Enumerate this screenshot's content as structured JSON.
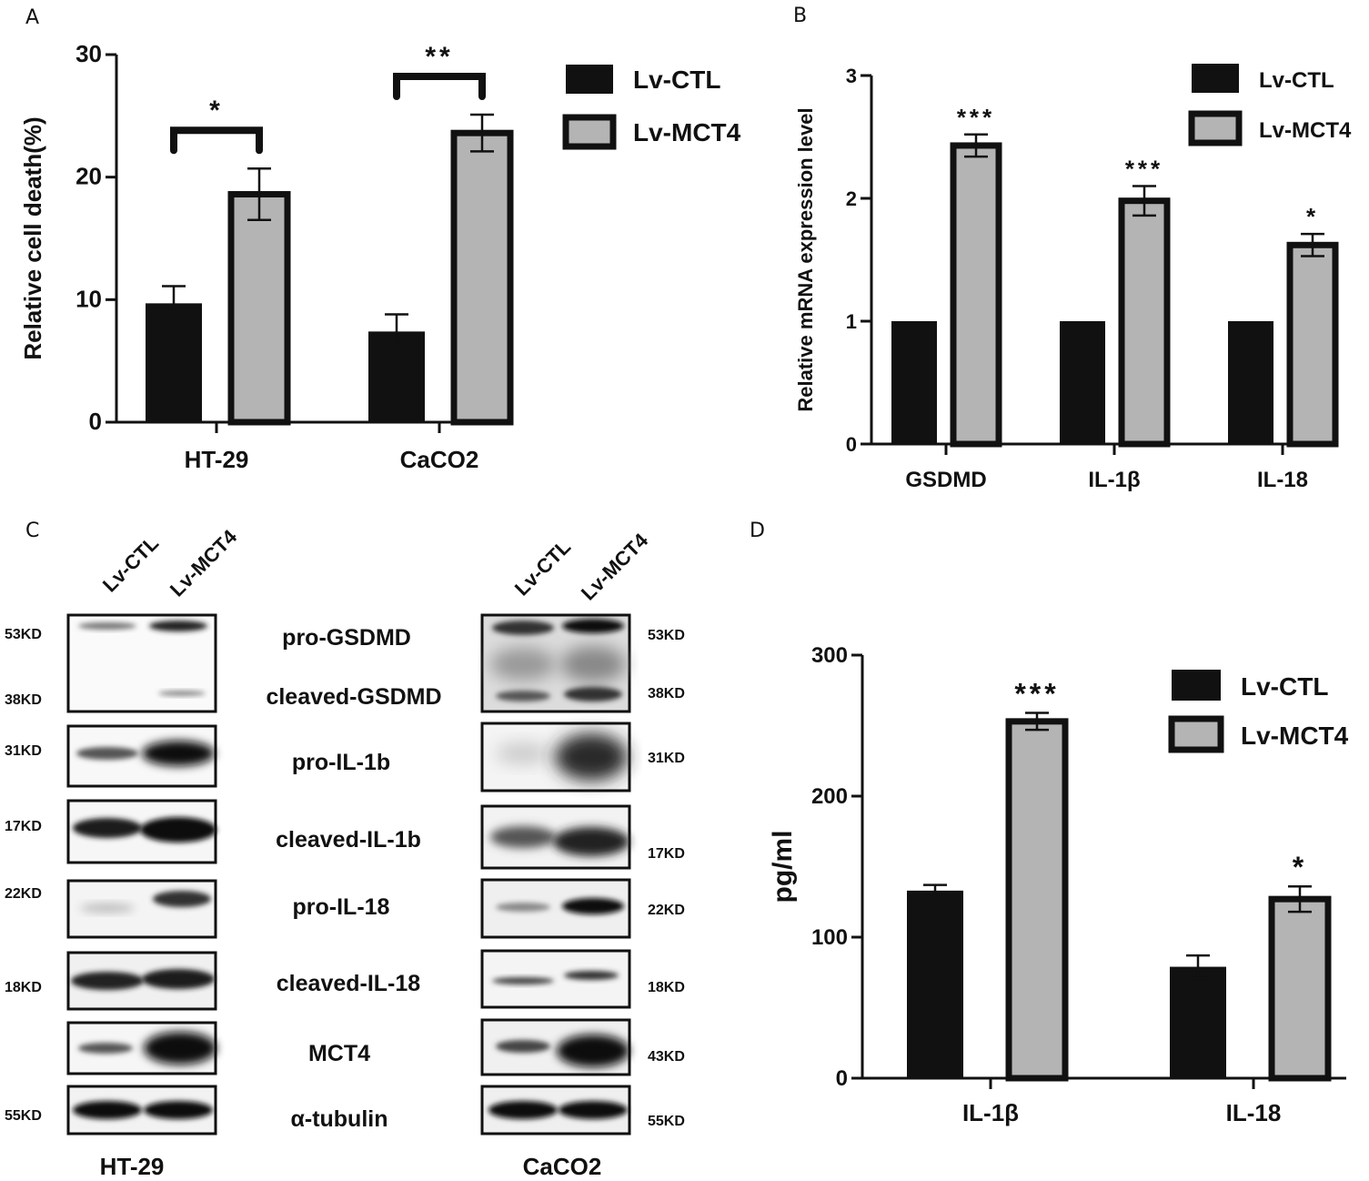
{
  "panels": [
    "A",
    "B",
    "C",
    "D"
  ],
  "colors": {
    "ctl": "#111111",
    "mct4": "#b4b4b4",
    "outline": "#111111"
  },
  "chart_data": [
    {
      "type": "bar",
      "panel": "A",
      "ylabel": "Relative cell death(%)",
      "xlabel": "",
      "ylim": [
        0,
        30
      ],
      "yticks": [
        "0",
        "10",
        "20",
        "30"
      ],
      "categories": [
        "HT-29",
        "CaCO2"
      ],
      "series": [
        {
          "name": "Lv-CTL",
          "values": [
            9.7,
            7.4
          ],
          "errors": [
            1.4,
            1.4
          ]
        },
        {
          "name": "Lv-MCT4",
          "values": [
            18.6,
            23.6
          ],
          "errors": [
            2.1,
            1.5
          ]
        }
      ],
      "significance": [
        {
          "category": "HT-29",
          "label": "*",
          "bracket": true
        },
        {
          "category": "CaCO2",
          "label": "**",
          "bracket": true
        }
      ],
      "legend": "top-right"
    },
    {
      "type": "bar",
      "panel": "B",
      "ylabel": "Relative mRNA expression level",
      "xlabel": "",
      "ylim": [
        0,
        3
      ],
      "yticks": [
        "0",
        "1",
        "2",
        "3"
      ],
      "categories": [
        "GSDMD",
        "IL-1β",
        "IL-18"
      ],
      "series": [
        {
          "name": "Lv-CTL",
          "values": [
            1.0,
            1.0,
            1.0
          ],
          "errors": [
            0,
            0,
            0
          ]
        },
        {
          "name": "Lv-MCT4",
          "values": [
            2.43,
            1.98,
            1.62
          ],
          "errors": [
            0.09,
            0.12,
            0.09
          ]
        }
      ],
      "significance": [
        {
          "category": "GSDMD",
          "label": "***"
        },
        {
          "category": "IL-1β",
          "label": "***"
        },
        {
          "category": "IL-18",
          "label": "*"
        }
      ],
      "legend": "top-right"
    },
    {
      "type": "bar",
      "panel": "D",
      "ylabel": "pg/ml",
      "xlabel": "",
      "ylim": [
        0,
        300
      ],
      "yticks": [
        "0",
        "100",
        "200",
        "300"
      ],
      "categories": [
        "IL-1β",
        "IL-18"
      ],
      "series": [
        {
          "name": "Lv-CTL",
          "values": [
            133,
            79
          ],
          "errors": [
            4,
            8
          ]
        },
        {
          "name": "Lv-MCT4",
          "values": [
            253,
            127
          ],
          "errors": [
            6,
            9
          ]
        }
      ],
      "significance": [
        {
          "category": "IL-1β",
          "label": "***"
        },
        {
          "category": "IL-18",
          "label": "*"
        }
      ],
      "legend": "top-right"
    }
  ],
  "western_blot": {
    "panel": "C",
    "lane_labels": [
      "Lv-CTL",
      "Lv-MCT4"
    ],
    "cell_lines": [
      "HT-29",
      "CaCO2"
    ],
    "proteins": [
      "pro-GSDMD",
      "cleaved-GSDMD",
      "pro-IL-1b",
      "cleaved-IL-1b",
      "pro-IL-18",
      "cleaved-IL-18",
      "MCT4",
      "α-tubulin"
    ],
    "left_markers": [
      "53KD",
      "38KD",
      "31KD",
      "17KD",
      "22KD",
      "18KD",
      "55KD"
    ],
    "right_markers": [
      "53KD",
      "38KD",
      "31KD",
      "17KD",
      "22KD",
      "18KD",
      "43KD",
      "55KD"
    ]
  }
}
